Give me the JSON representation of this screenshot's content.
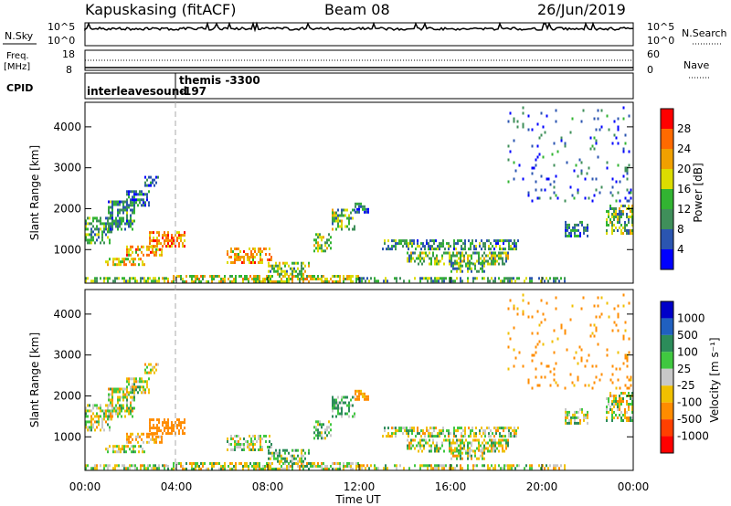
{
  "header": {
    "station": "Kapuskasing (fitACF)",
    "beam": "Beam 08",
    "date": "26/Jun/2019"
  },
  "top_panels": {
    "nsky_label": "N.Sky",
    "nsky_ticks": [
      "10^5",
      "10^0"
    ],
    "nsearch_label": "N.Search",
    "nsearch_ticks": [
      "10^5",
      "10^0"
    ],
    "freq_label_1": "Freq.",
    "freq_label_2": "[MHz]",
    "freq_ticks": [
      "18",
      "8"
    ],
    "nave_label": "Nave",
    "nave_ticks": [
      "60",
      "0"
    ],
    "cpid_label": "CPID",
    "cpid_entries": [
      "interleavesound",
      "themis -3300",
      "-197"
    ]
  },
  "chart_data": [
    {
      "type": "heatmap",
      "title": "",
      "xlabel": "",
      "ylabel": "Slant Range [km]",
      "x_ticks": [
        "00:00",
        "04:00",
        "08:00",
        "12:00",
        "16:00",
        "20:00",
        "00:00"
      ],
      "y_ticks": [
        "1000",
        "2000",
        "3000",
        "4000"
      ],
      "xlim": [
        0,
        24
      ],
      "ylim": [
        180,
        4600
      ],
      "colorbar": {
        "label": "Power [dB]",
        "ticks": [
          "4",
          "8",
          "12",
          "16",
          "20",
          "24",
          "28"
        ],
        "colors": [
          "#0000ff",
          "#2b55b0",
          "#3f8f5a",
          "#32b432",
          "#dcdc00",
          "#f0a000",
          "#ff6a00",
          "#ff0000"
        ]
      },
      "blobs": [
        {
          "t0": 0.0,
          "t1": 3.6,
          "r0": 200,
          "r1": 330,
          "v": 14
        },
        {
          "t0": 3.6,
          "t1": 12.0,
          "r0": 200,
          "r1": 380,
          "v": 18
        },
        {
          "t0": 12.0,
          "t1": 21.0,
          "r0": 200,
          "r1": 330,
          "v": 12
        },
        {
          "t0": 0.0,
          "t1": 1.2,
          "r0": 1150,
          "r1": 1800,
          "v": 12
        },
        {
          "t0": 1.0,
          "t1": 2.2,
          "r0": 1500,
          "r1": 2200,
          "v": 10
        },
        {
          "t0": 1.8,
          "t1": 2.8,
          "r0": 2050,
          "r1": 2450,
          "v": 8
        },
        {
          "t0": 2.6,
          "t1": 3.2,
          "r0": 2550,
          "r1": 2800,
          "v": 6
        },
        {
          "t0": 1.8,
          "t1": 3.4,
          "r0": 850,
          "r1": 1100,
          "v": 22
        },
        {
          "t0": 2.8,
          "t1": 4.4,
          "r0": 1050,
          "r1": 1450,
          "v": 24
        },
        {
          "t0": 0.8,
          "t1": 2.6,
          "r0": 600,
          "r1": 800,
          "v": 20
        },
        {
          "t0": 6.2,
          "t1": 8.2,
          "r0": 700,
          "r1": 1050,
          "v": 22
        },
        {
          "t0": 8.0,
          "t1": 9.8,
          "r0": 400,
          "r1": 700,
          "v": 14
        },
        {
          "t0": 10.0,
          "t1": 10.8,
          "r0": 950,
          "r1": 1400,
          "v": 16
        },
        {
          "t0": 10.8,
          "t1": 11.8,
          "r0": 1500,
          "r1": 2000,
          "v": 14
        },
        {
          "t0": 11.8,
          "t1": 12.4,
          "r0": 1900,
          "r1": 2150,
          "v": 8
        },
        {
          "t0": 13.0,
          "t1": 19.0,
          "r0": 1000,
          "r1": 1250,
          "v": 10
        },
        {
          "t0": 14.0,
          "t1": 18.5,
          "r0": 650,
          "r1": 950,
          "v": 14
        },
        {
          "t0": 16.0,
          "t1": 17.5,
          "r0": 450,
          "r1": 700,
          "v": 12
        },
        {
          "t0": 21.0,
          "t1": 22.0,
          "r0": 1300,
          "r1": 1700,
          "v": 8
        },
        {
          "t0": 22.8,
          "t1": 24.0,
          "r0": 1400,
          "r1": 2100,
          "v": 14
        },
        {
          "t0": 18.5,
          "t1": 24.0,
          "r0": 2200,
          "r1": 4500,
          "v": 6,
          "sparse": true
        }
      ]
    },
    {
      "type": "heatmap",
      "title": "",
      "xlabel": "Time UT",
      "ylabel": "Slant Range [km]",
      "x_ticks": [
        "00:00",
        "04:00",
        "08:00",
        "12:00",
        "16:00",
        "20:00",
        "00:00"
      ],
      "y_ticks": [
        "1000",
        "2000",
        "3000",
        "4000"
      ],
      "xlim": [
        0,
        24
      ],
      "ylim": [
        180,
        4600
      ],
      "colorbar": {
        "label": "Velocity [m s⁻¹]",
        "ticks": [
          "1000",
          "500",
          "100",
          "25",
          "-25",
          "-100",
          "-500",
          "-1000"
        ],
        "colors": [
          "#0000c8",
          "#2060c0",
          "#2c8c5a",
          "#40c840",
          "#c8c8c8",
          "#f0c000",
          "#ff8c00",
          "#ff4000",
          "#ff0000"
        ]
      },
      "blobs": [
        {
          "t0": 0.0,
          "t1": 3.6,
          "r0": 200,
          "r1": 330,
          "v": 0
        },
        {
          "t0": 3.6,
          "t1": 12.0,
          "r0": 200,
          "r1": 380,
          "v": 0
        },
        {
          "t0": 12.0,
          "t1": 21.0,
          "r0": 200,
          "r1": 330,
          "v": 0
        },
        {
          "t0": 0.0,
          "t1": 1.2,
          "r0": 1150,
          "r1": 1800,
          "v": 0
        },
        {
          "t0": 1.0,
          "t1": 2.2,
          "r0": 1500,
          "r1": 2200,
          "v": 0
        },
        {
          "t0": 1.8,
          "t1": 2.8,
          "r0": 2050,
          "r1": 2450,
          "v": 0
        },
        {
          "t0": 2.6,
          "t1": 3.2,
          "r0": 2550,
          "r1": 2800,
          "v": -50
        },
        {
          "t0": 1.8,
          "t1": 3.4,
          "r0": 850,
          "r1": 1100,
          "v": -120
        },
        {
          "t0": 2.8,
          "t1": 4.4,
          "r0": 1050,
          "r1": 1450,
          "v": -300
        },
        {
          "t0": 0.8,
          "t1": 2.6,
          "r0": 600,
          "r1": 800,
          "v": 0
        },
        {
          "t0": 6.2,
          "t1": 8.2,
          "r0": 700,
          "r1": 1050,
          "v": 0
        },
        {
          "t0": 8.0,
          "t1": 9.8,
          "r0": 400,
          "r1": 700,
          "v": 60
        },
        {
          "t0": 10.0,
          "t1": 10.8,
          "r0": 950,
          "r1": 1400,
          "v": 80
        },
        {
          "t0": 10.8,
          "t1": 11.8,
          "r0": 1500,
          "r1": 2000,
          "v": 120
        },
        {
          "t0": 11.8,
          "t1": 12.4,
          "r0": 1900,
          "r1": 2150,
          "v": -150
        },
        {
          "t0": 13.0,
          "t1": 19.0,
          "r0": 1000,
          "r1": 1250,
          "v": 0
        },
        {
          "t0": 14.0,
          "t1": 18.5,
          "r0": 650,
          "r1": 950,
          "v": 0
        },
        {
          "t0": 16.0,
          "t1": 17.5,
          "r0": 450,
          "r1": 700,
          "v": 0
        },
        {
          "t0": 21.0,
          "t1": 22.0,
          "r0": 1300,
          "r1": 1700,
          "v": 0
        },
        {
          "t0": 22.8,
          "t1": 24.0,
          "r0": 1400,
          "r1": 2100,
          "v": 0
        },
        {
          "t0": 18.5,
          "t1": 24.0,
          "r0": 2200,
          "r1": 4500,
          "v": -200,
          "sparse": true
        }
      ]
    }
  ]
}
